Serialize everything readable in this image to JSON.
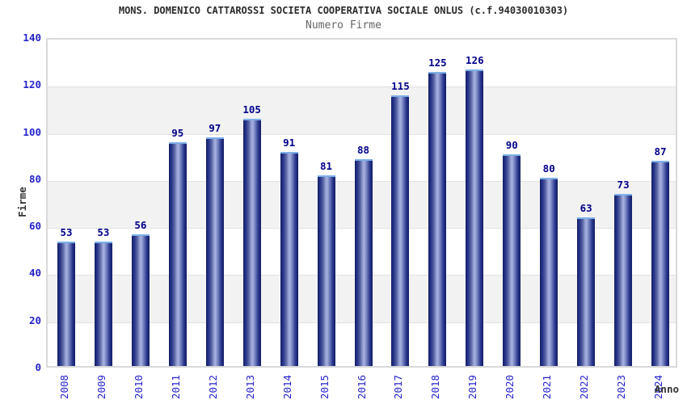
{
  "header": {
    "title": "MONS. DOMENICO CATTAROSSI SOCIETA COOPERATIVA SOCIALE ONLUS (c.f.94030010303)",
    "subtitle": "Numero Firme"
  },
  "chart_data": {
    "type": "bar",
    "title": "MONS. DOMENICO CATTAROSSI SOCIETA COOPERATIVA SOCIALE ONLUS (c.f.94030010303)",
    "subtitle": "Numero Firme",
    "categories": [
      "2008",
      "2009",
      "2010",
      "2011",
      "2012",
      "2013",
      "2014",
      "2015",
      "2016",
      "2017",
      "2018",
      "2019",
      "2020",
      "2021",
      "2022",
      "2023",
      "2024"
    ],
    "values": [
      53,
      53,
      56,
      95,
      97,
      105,
      91,
      81,
      88,
      115,
      125,
      126,
      90,
      80,
      63,
      73,
      87
    ],
    "xlabel": "Anno",
    "ylabel": "Firme",
    "ylim": [
      0,
      140
    ],
    "ytick_step": 20,
    "yticks": [
      0,
      20,
      40,
      60,
      80,
      100,
      120,
      140
    ],
    "legend": "none",
    "grid": "horizontal gridlines every 20 with alternating white/gray bands",
    "value_labels": "above each bar"
  },
  "colors": {
    "bar_edge": "#141f63",
    "bar_center": "#a8b1e0",
    "bar_top_cap": "#7cb0e8",
    "tick_label_blue": "#2424cb",
    "value_label_navy": "#00008b",
    "title_dark": "#2b2b2b",
    "subtitle_gray": "#666666",
    "axis_title_dark": "#333333",
    "band_gray": "#f2f2f2",
    "gridline": "#e2e2e2",
    "plot_border": "#d9d9d9",
    "background": "#ffffff"
  }
}
